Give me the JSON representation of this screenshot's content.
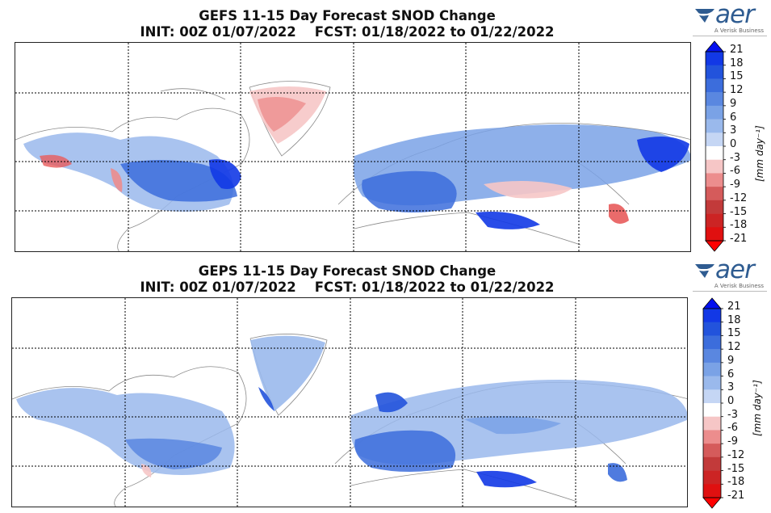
{
  "colors": {
    "colorbar": [
      "#ff0000",
      "#e01010",
      "#cc2424",
      "#c23a3a",
      "#d55b5b",
      "#ec8d8d",
      "#f6c6c6",
      "#ffffff",
      "#c5d6f4",
      "#9ab9ec",
      "#7aa2e6",
      "#5a87e0",
      "#3c6ddc",
      "#2253dc",
      "#1238e6",
      "#0410ef"
    ],
    "land_outline": "#8a8a8a",
    "snow_blue": "#5a87e0",
    "snow_red": "#e85b5b"
  },
  "panels": [
    {
      "id": "gefs",
      "title_line1": "GEFS 11-15 Day Forecast SNOD Change",
      "title_line2": "INIT: 00Z 01/07/2022    FCST: 01/18/2022 to 01/22/2022",
      "logo_text": "aer",
      "logo_tagline": "A Verisk Business",
      "colorbar_ticks": [
        "21",
        "18",
        "15",
        "12",
        "9",
        "6",
        "3",
        "0",
        "-3",
        "-6",
        "-9",
        "-12",
        "-15",
        "-18",
        "-21"
      ],
      "colorbar_units": "[mm day⁻¹]"
    },
    {
      "id": "geps",
      "title_line1": "GEPS 11-15 Day Forecast SNOD Change",
      "title_line2": "INIT: 00Z 01/07/2022    FCST: 01/18/2022 to 01/22/2022",
      "logo_text": "aer",
      "logo_tagline": "A Verisk Business",
      "colorbar_ticks": [
        "21",
        "18",
        "15",
        "12",
        "9",
        "6",
        "3",
        "0",
        "-3",
        "-6",
        "-9",
        "-12",
        "-15",
        "-18",
        "-21"
      ],
      "colorbar_units": "[mm day⁻¹]"
    }
  ]
}
